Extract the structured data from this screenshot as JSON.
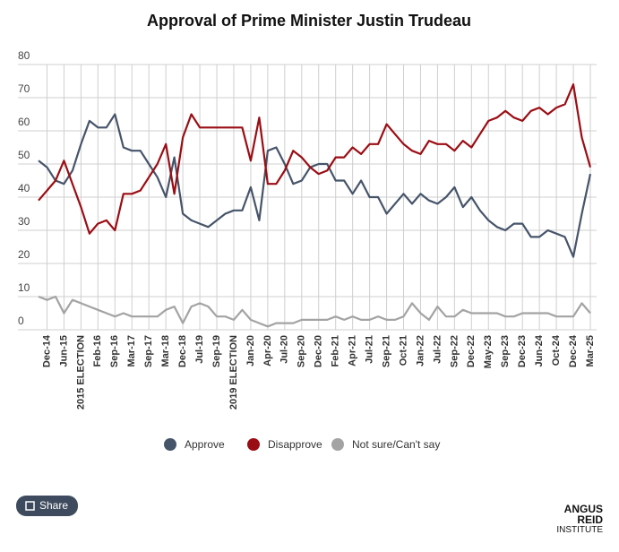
{
  "chart_data": {
    "type": "line",
    "title": "Approval of Prime Minister Justin Trudeau",
    "categories": [
      null,
      "Dec-14",
      null,
      "Jun-15",
      null,
      "2015 ELECTION",
      null,
      "Feb-16",
      null,
      "Sep-16",
      null,
      "Mar-17",
      null,
      "Sep-17",
      null,
      "Mar-18",
      null,
      "Dec-18",
      null,
      "Jul-19",
      null,
      "Sep-19",
      null,
      "2019 ELECTION",
      null,
      "Jan-20",
      null,
      "Apr-20",
      null,
      "Jul-20",
      null,
      "Sep-20",
      null,
      "Dec-20",
      null,
      "Feb-21",
      null,
      "Apr-21",
      null,
      "Jul-21",
      null,
      "Sep-21",
      null,
      "Oct-21",
      null,
      "Jan-22",
      null,
      "Jul-22",
      null,
      "Sep-22",
      null,
      "Dec-22",
      null,
      "May-23",
      null,
      "Sep-23",
      null,
      "Dec-23",
      null,
      "Jun-24",
      null,
      "Oct-24",
      null,
      "Dec-24",
      null,
      "Mar-25"
    ],
    "series": [
      {
        "name": "Approve",
        "color": "#46546a",
        "values": [
          51,
          49,
          45,
          44,
          48,
          56,
          63,
          61,
          61,
          65,
          55,
          54,
          54,
          50,
          46,
          40,
          52,
          35,
          33,
          32,
          31,
          33,
          35,
          36,
          36,
          43,
          33,
          54,
          55,
          50,
          44,
          45,
          49,
          50,
          50,
          45,
          45,
          41,
          45,
          40,
          40,
          35,
          38,
          41,
          38,
          41,
          39,
          38,
          40,
          43,
          37,
          40,
          36,
          33,
          31,
          30,
          32,
          32,
          28,
          28,
          30,
          29,
          28,
          22,
          35,
          47
        ]
      },
      {
        "name": "Disapprove",
        "color": "#9b0d14",
        "values": [
          39,
          42,
          45,
          51,
          44,
          37,
          29,
          32,
          33,
          30,
          41,
          41,
          42,
          46,
          50,
          56,
          41,
          58,
          65,
          61,
          61,
          61,
          61,
          61,
          61,
          51,
          64,
          44,
          44,
          48,
          54,
          52,
          49,
          47,
          48,
          52,
          52,
          55,
          53,
          56,
          56,
          62,
          59,
          56,
          54,
          53,
          57,
          56,
          56,
          54,
          57,
          55,
          59,
          63,
          64,
          66,
          64,
          63,
          66,
          67,
          65,
          67,
          68,
          74,
          58,
          49
        ]
      },
      {
        "name": "Not sure/Can't say",
        "color": "#a3a3a3",
        "values": [
          10,
          9,
          10,
          5,
          9,
          8,
          7,
          6,
          5,
          4,
          5,
          4,
          4,
          4,
          4,
          6,
          7,
          2,
          7,
          8,
          7,
          4,
          4,
          3,
          6,
          3,
          2,
          1,
          2,
          2,
          2,
          3,
          3,
          3,
          3,
          4,
          3,
          4,
          3,
          3,
          4,
          3,
          3,
          4,
          8,
          5,
          3,
          7,
          4,
          4,
          6,
          5,
          5,
          5,
          5,
          4,
          4,
          5,
          5,
          5,
          5,
          4,
          4,
          4,
          8,
          5
        ]
      }
    ],
    "ylim": [
      0,
      80
    ],
    "yticks": [
      0,
      10,
      20,
      30,
      40,
      50,
      60,
      70,
      80
    ],
    "grid": true,
    "legend": "bottom"
  },
  "share": "Share",
  "logo": {
    "line1": "ANGUS",
    "line2": "REID",
    "line3": "INSTITUTE"
  }
}
